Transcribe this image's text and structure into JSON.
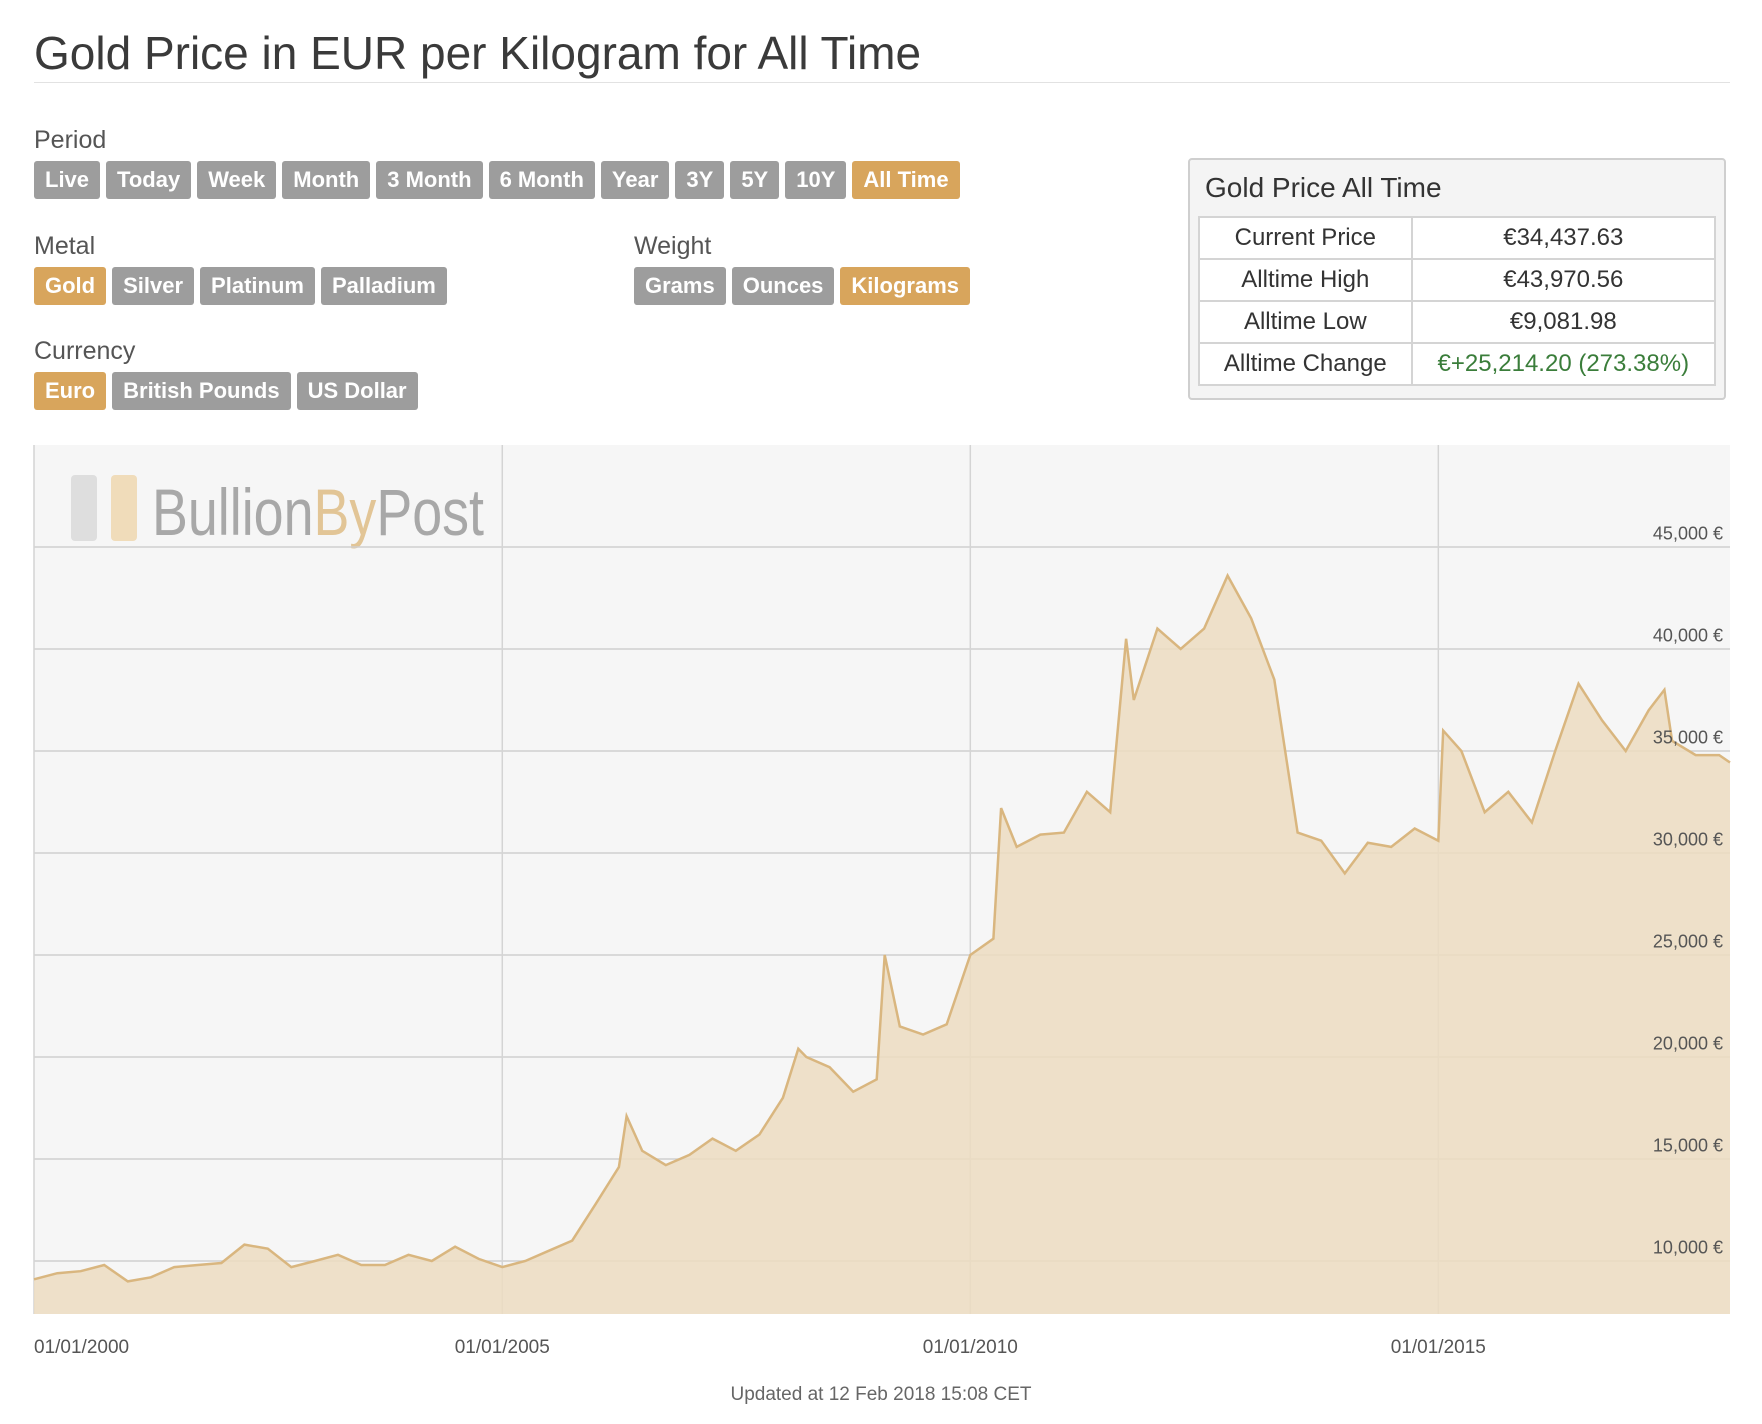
{
  "header": {
    "title": "Gold Price in EUR per Kilogram for All Time"
  },
  "controls": {
    "period": {
      "label": "Period",
      "options": [
        "Live",
        "Today",
        "Week",
        "Month",
        "3 Month",
        "6 Month",
        "Year",
        "3Y",
        "5Y",
        "10Y",
        "All Time"
      ],
      "active": 10
    },
    "metal": {
      "label": "Metal",
      "options": [
        "Gold",
        "Silver",
        "Platinum",
        "Palladium"
      ],
      "active": 0
    },
    "weight": {
      "label": "Weight",
      "options": [
        "Grams",
        "Ounces",
        "Kilograms"
      ],
      "active": 2
    },
    "currency": {
      "label": "Currency",
      "options": [
        "Euro",
        "British Pounds",
        "US Dollar"
      ],
      "active": 0
    }
  },
  "summary": {
    "title": "Gold Price All Time",
    "rows": [
      [
        "Current Price",
        "€34,437.63"
      ],
      [
        "Alltime High",
        "€43,970.56"
      ],
      [
        "Alltime Low",
        "€9,081.98"
      ],
      [
        "Alltime Change",
        "€+25,214.20 (273.38%)"
      ]
    ],
    "highlight_row": 3,
    "highlight_color": "#3a7d3a"
  },
  "watermark": {
    "parts": [
      "Bullion",
      "By",
      "Post"
    ]
  },
  "chart_data": {
    "type": "area",
    "color": "#d9b67f",
    "fill": "#ecdcc1",
    "x": [
      "2000-01-01",
      "2000-04-01",
      "2000-07-01",
      "2000-10-01",
      "2001-01-01",
      "2001-04-01",
      "2001-07-01",
      "2001-10-01",
      "2002-01-01",
      "2002-04-01",
      "2002-07-01",
      "2002-10-01",
      "2003-01-01",
      "2003-04-01",
      "2003-07-01",
      "2003-10-01",
      "2004-01-01",
      "2004-04-01",
      "2004-07-01",
      "2004-10-01",
      "2005-01-01",
      "2005-04-01",
      "2005-07-01",
      "2005-10-01",
      "2006-01-01",
      "2006-04-01",
      "2006-05-01",
      "2006-07-01",
      "2006-10-01",
      "2007-01-01",
      "2007-04-01",
      "2007-07-01",
      "2007-10-01",
      "2008-01-01",
      "2008-03-01",
      "2008-04-01",
      "2008-07-01",
      "2008-10-01",
      "2009-01-01",
      "2009-02-01",
      "2009-04-01",
      "2009-07-01",
      "2009-10-01",
      "2010-01-01",
      "2010-04-01",
      "2010-05-01",
      "2010-07-01",
      "2010-10-01",
      "2011-01-01",
      "2011-04-01",
      "2011-07-01",
      "2011-09-01",
      "2011-10-01",
      "2012-01-01",
      "2012-04-01",
      "2012-07-01",
      "2012-10-01",
      "2013-01-01",
      "2013-04-01",
      "2013-07-01",
      "2013-10-01",
      "2014-01-01",
      "2014-04-01",
      "2014-07-01",
      "2014-10-01",
      "2015-01-01",
      "2015-01-20",
      "2015-04-01",
      "2015-07-01",
      "2015-10-01",
      "2016-01-01",
      "2016-04-01",
      "2016-07-01",
      "2016-10-01",
      "2017-01-01",
      "2017-04-01",
      "2017-06-01",
      "2017-07-01",
      "2017-10-01",
      "2018-01-01",
      "2018-02-12"
    ],
    "values": [
      9100,
      9400,
      9500,
      9800,
      9000,
      9200,
      9700,
      9800,
      9900,
      10800,
      10600,
      9700,
      10000,
      10300,
      9800,
      9800,
      10300,
      10000,
      10700,
      10100,
      9700,
      10000,
      10500,
      11000,
      12800,
      14600,
      17100,
      15400,
      14700,
      15200,
      16000,
      15400,
      16200,
      18000,
      20400,
      20000,
      19500,
      18300,
      18900,
      25000,
      21500,
      21100,
      21600,
      25000,
      25800,
      32200,
      30300,
      30900,
      31000,
      33000,
      32000,
      40500,
      37500,
      41000,
      40000,
      41000,
      43600,
      41500,
      38500,
      31000,
      30600,
      29000,
      30500,
      30300,
      31200,
      30600,
      36000,
      35000,
      32000,
      33000,
      31500,
      35000,
      38300,
      36500,
      35000,
      37000,
      38000,
      35500,
      34800,
      34800,
      34437.63
    ],
    "xlim": [
      "2000-01-01",
      "2018-02-12"
    ],
    "xticks": [
      {
        "value": "2000-01-01",
        "label": "01/01/2000"
      },
      {
        "value": "2005-01-01",
        "label": "01/01/2005"
      },
      {
        "value": "2010-01-01",
        "label": "01/01/2010"
      },
      {
        "value": "2015-01-01",
        "label": "01/01/2015"
      }
    ],
    "ylim": [
      7400,
      50000
    ],
    "yticks": [
      {
        "value": 10000,
        "label": "10,000 €"
      },
      {
        "value": 15000,
        "label": "15,000 €"
      },
      {
        "value": 20000,
        "label": "20,000 €"
      },
      {
        "value": 25000,
        "label": "25,000 €"
      },
      {
        "value": 30000,
        "label": "30,000 €"
      },
      {
        "value": 35000,
        "label": "35,000 €"
      },
      {
        "value": 40000,
        "label": "40,000 €"
      },
      {
        "value": 45000,
        "label": "45,000 €"
      }
    ],
    "grid": true
  },
  "footer": {
    "updated": "Updated at 12 Feb 2018 15:08 CET"
  }
}
